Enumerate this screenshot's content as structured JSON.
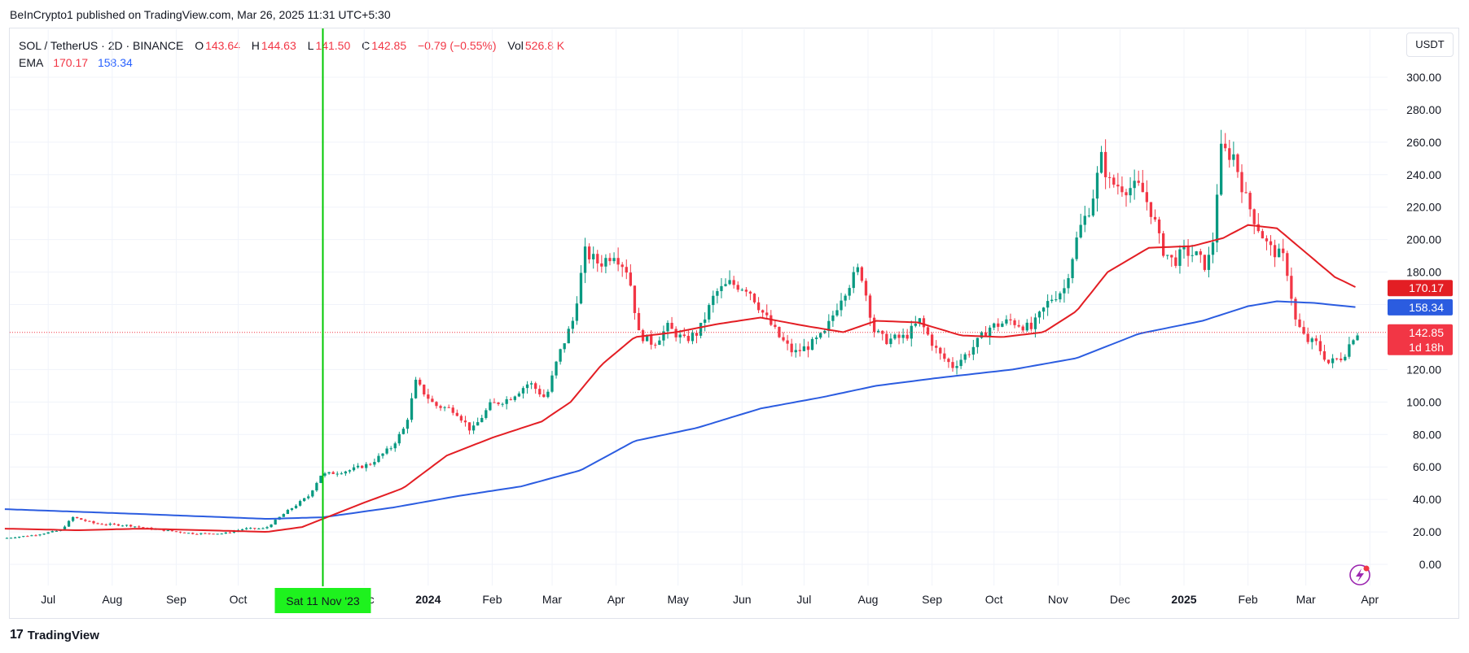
{
  "header": {
    "published": "BeInCrypto1 published on TradingView.com, Mar 26, 2025 11:31 UTC+5:30"
  },
  "legend": {
    "symbol": "SOL / TetherUS · 2D · BINANCE",
    "o_label": "O",
    "o_value": "143.64",
    "h_label": "H",
    "h_value": "144.63",
    "l_label": "L",
    "l_value": "141.50",
    "c_label": "C",
    "c_value": "142.85",
    "change": "−0.79 (−0.55%)",
    "vol_label": "Vol",
    "vol_value": "526.8 K",
    "ema_label": "EMA",
    "ema_red": "170.17",
    "ema_blue": "158.34"
  },
  "currency_button": "USDT",
  "footer": {
    "brand": "TradingView",
    "logo_mark": "17"
  },
  "colors": {
    "up": "#089981",
    "down": "#f23645",
    "ema_fast": "#e31e24",
    "ema_slow": "#2b5ce0",
    "crosshair": "#00c800"
  },
  "chart_data": {
    "type": "candlestick",
    "title": "SOL / TetherUS · 2D · BINANCE",
    "y_unit": "USDT",
    "ylim": [
      -10,
      305
    ],
    "y_ticks": [
      "300.00",
      "280.00",
      "260.00",
      "240.00",
      "220.00",
      "200.00",
      "180.00",
      "160.00",
      "140.00",
      "120.00",
      "100.00",
      "80.00",
      "60.00",
      "40.00",
      "20.00",
      "0.00"
    ],
    "x_ticks": [
      {
        "label": "Jul",
        "date": "2023-07-01",
        "bold": false
      },
      {
        "label": "Aug",
        "date": "2023-08-01",
        "bold": false
      },
      {
        "label": "Sep",
        "date": "2023-09-01",
        "bold": false
      },
      {
        "label": "Oct",
        "date": "2023-10-01",
        "bold": false
      },
      {
        "label": "Dec",
        "date": "2023-12-01",
        "bold": false
      },
      {
        "label": "2024",
        "date": "2024-01-01",
        "bold": true
      },
      {
        "label": "Feb",
        "date": "2024-02-01",
        "bold": false
      },
      {
        "label": "Mar",
        "date": "2024-03-01",
        "bold": false
      },
      {
        "label": "Apr",
        "date": "2024-04-01",
        "bold": false
      },
      {
        "label": "May",
        "date": "2024-05-01",
        "bold": false
      },
      {
        "label": "Jun",
        "date": "2024-06-01",
        "bold": false
      },
      {
        "label": "Jul",
        "date": "2024-07-01",
        "bold": false
      },
      {
        "label": "Aug",
        "date": "2024-08-01",
        "bold": false
      },
      {
        "label": "Sep",
        "date": "2024-09-01",
        "bold": false
      },
      {
        "label": "Oct",
        "date": "2024-10-01",
        "bold": false
      },
      {
        "label": "Nov",
        "date": "2024-11-01",
        "bold": false
      },
      {
        "label": "Dec",
        "date": "2024-12-01",
        "bold": false
      },
      {
        "label": "2025",
        "date": "2025-01-01",
        "bold": true
      },
      {
        "label": "Feb",
        "date": "2025-02-01",
        "bold": false
      },
      {
        "label": "Mar",
        "date": "2025-03-01",
        "bold": false
      },
      {
        "label": "Apr",
        "date": "2025-04-01",
        "bold": false
      }
    ],
    "crosshair": {
      "label": "Sat 11 Nov '23",
      "date": "2023-11-11"
    },
    "last_price": {
      "value": 142.85,
      "label": "142.85",
      "countdown": "1d 18h"
    },
    "ema_labels": [
      {
        "value": 170.17,
        "label": "170.17",
        "series": "ema_fast"
      },
      {
        "value": 158.34,
        "label": "158.34",
        "series": "ema_slow"
      }
    ],
    "anchors": [
      [
        "2023-06-10",
        16
      ],
      [
        "2023-06-25",
        18
      ],
      [
        "2023-07-08",
        21
      ],
      [
        "2023-07-14",
        29
      ],
      [
        "2023-07-25",
        25
      ],
      [
        "2023-08-10",
        24
      ],
      [
        "2023-08-20",
        22
      ],
      [
        "2023-09-10",
        19
      ],
      [
        "2023-09-25",
        19
      ],
      [
        "2023-10-05",
        22
      ],
      [
        "2023-10-15",
        22
      ],
      [
        "2023-10-25",
        32
      ],
      [
        "2023-11-05",
        42
      ],
      [
        "2023-11-11",
        55
      ],
      [
        "2023-11-25",
        58
      ],
      [
        "2023-12-05",
        62
      ],
      [
        "2023-12-15",
        72
      ],
      [
        "2023-12-22",
        85
      ],
      [
        "2023-12-27",
        112
      ],
      [
        "2024-01-05",
        98
      ],
      [
        "2024-01-15",
        95
      ],
      [
        "2024-01-23",
        82
      ],
      [
        "2024-02-01",
        98
      ],
      [
        "2024-02-10",
        102
      ],
      [
        "2024-02-20",
        112
      ],
      [
        "2024-02-28",
        102
      ],
      [
        "2024-03-05",
        128
      ],
      [
        "2024-03-12",
        150
      ],
      [
        "2024-03-18",
        192
      ],
      [
        "2024-03-25",
        185
      ],
      [
        "2024-04-01",
        192
      ],
      [
        "2024-04-08",
        180
      ],
      [
        "2024-04-13",
        142
      ],
      [
        "2024-04-20",
        136
      ],
      [
        "2024-04-27",
        146
      ],
      [
        "2024-05-05",
        138
      ],
      [
        "2024-05-12",
        143
      ],
      [
        "2024-05-20",
        167
      ],
      [
        "2024-05-27",
        173
      ],
      [
        "2024-06-05",
        170
      ],
      [
        "2024-06-12",
        155
      ],
      [
        "2024-06-20",
        140
      ],
      [
        "2024-06-27",
        130
      ],
      [
        "2024-07-05",
        135
      ],
      [
        "2024-07-12",
        142
      ],
      [
        "2024-07-20",
        165
      ],
      [
        "2024-07-29",
        183
      ],
      [
        "2024-08-05",
        144
      ],
      [
        "2024-08-10",
        138
      ],
      [
        "2024-08-20",
        140
      ],
      [
        "2024-08-27",
        150
      ],
      [
        "2024-09-05",
        130
      ],
      [
        "2024-09-12",
        122
      ],
      [
        "2024-09-20",
        131
      ],
      [
        "2024-09-30",
        146
      ],
      [
        "2024-10-10",
        150
      ],
      [
        "2024-10-20",
        145
      ],
      [
        "2024-10-29",
        163
      ],
      [
        "2024-11-05",
        170
      ],
      [
        "2024-11-12",
        205
      ],
      [
        "2024-11-18",
        222
      ],
      [
        "2024-11-23",
        250
      ],
      [
        "2024-11-27",
        235
      ],
      [
        "2024-12-05",
        232
      ],
      [
        "2024-12-12",
        232
      ],
      [
        "2024-12-18",
        215
      ],
      [
        "2024-12-22",
        195
      ],
      [
        "2024-12-28",
        186
      ],
      [
        "2025-01-02",
        193
      ],
      [
        "2025-01-08",
        190
      ],
      [
        "2025-01-13",
        183
      ],
      [
        "2025-01-17",
        205
      ],
      [
        "2025-01-19",
        255
      ],
      [
        "2025-01-26",
        252
      ],
      [
        "2025-02-01",
        225
      ],
      [
        "2025-02-06",
        210
      ],
      [
        "2025-02-12",
        195
      ],
      [
        "2025-02-20",
        188
      ],
      [
        "2025-02-25",
        150
      ],
      [
        "2025-03-02",
        138
      ],
      [
        "2025-03-07",
        136
      ],
      [
        "2025-03-13",
        124
      ],
      [
        "2025-03-20",
        128
      ],
      [
        "2025-03-26",
        142.85
      ]
    ],
    "ema_fast": [
      [
        "2023-06-10",
        22
      ],
      [
        "2023-07-15",
        21
      ],
      [
        "2023-08-15",
        22
      ],
      [
        "2023-09-15",
        21
      ],
      [
        "2023-10-15",
        20
      ],
      [
        "2023-11-01",
        23
      ],
      [
        "2023-11-11",
        28
      ],
      [
        "2023-12-01",
        38
      ],
      [
        "2023-12-20",
        47
      ],
      [
        "2024-01-10",
        67
      ],
      [
        "2024-02-01",
        78
      ],
      [
        "2024-02-25",
        88
      ],
      [
        "2024-03-10",
        100
      ],
      [
        "2024-03-25",
        123
      ],
      [
        "2024-04-10",
        140
      ],
      [
        "2024-04-30",
        143
      ],
      [
        "2024-05-20",
        148
      ],
      [
        "2024-06-10",
        152
      ],
      [
        "2024-07-01",
        147
      ],
      [
        "2024-07-20",
        143
      ],
      [
        "2024-08-05",
        150
      ],
      [
        "2024-08-25",
        149
      ],
      [
        "2024-09-15",
        141
      ],
      [
        "2024-10-05",
        140
      ],
      [
        "2024-10-25",
        143
      ],
      [
        "2024-11-10",
        156
      ],
      [
        "2024-11-25",
        180
      ],
      [
        "2024-12-15",
        195
      ],
      [
        "2025-01-05",
        196
      ],
      [
        "2025-01-20",
        201
      ],
      [
        "2025-02-01",
        209
      ],
      [
        "2025-02-15",
        207
      ],
      [
        "2025-03-01",
        192
      ],
      [
        "2025-03-15",
        177
      ],
      [
        "2025-03-26",
        170.17
      ]
    ],
    "ema_slow": [
      [
        "2023-06-10",
        34
      ],
      [
        "2023-08-15",
        31
      ],
      [
        "2023-10-15",
        28
      ],
      [
        "2023-11-11",
        29
      ],
      [
        "2023-12-15",
        35
      ],
      [
        "2024-01-15",
        42
      ],
      [
        "2024-02-15",
        48
      ],
      [
        "2024-03-15",
        58
      ],
      [
        "2024-04-10",
        76
      ],
      [
        "2024-05-10",
        84
      ],
      [
        "2024-06-10",
        96
      ],
      [
        "2024-07-10",
        103
      ],
      [
        "2024-08-05",
        110
      ],
      [
        "2024-09-05",
        115
      ],
      [
        "2024-10-10",
        120
      ],
      [
        "2024-11-10",
        127
      ],
      [
        "2024-12-10",
        142
      ],
      [
        "2025-01-10",
        150
      ],
      [
        "2025-02-01",
        159
      ],
      [
        "2025-02-15",
        162
      ],
      [
        "2025-03-05",
        161
      ],
      [
        "2025-03-26",
        158.34
      ]
    ]
  }
}
